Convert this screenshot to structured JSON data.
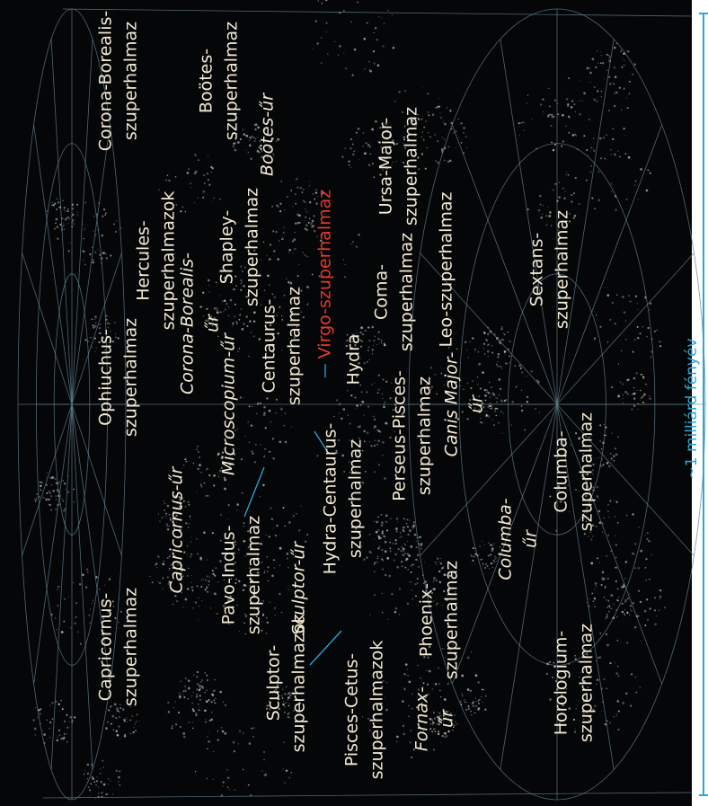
{
  "labels": [
    {
      "lines": [
        "Corona-Borealis-",
        "szuperhalmaz"
      ]
    },
    {
      "lines": [
        "Boötes-",
        "szuperhalmaz"
      ]
    },
    {
      "lines": [
        "Boötes-űr"
      ]
    },
    {
      "lines": [
        "Ursa-Major-",
        "szuperhalmaz"
      ]
    },
    {
      "lines": [
        "Leo-szuperhalmaz"
      ]
    },
    {
      "lines": [
        "Sextans-",
        "szuperhalmaz"
      ]
    },
    {
      "lines": [
        "Virgo-szuperhalmaz"
      ]
    },
    {
      "lines": [
        "Shapley-",
        "szuperhalmaz"
      ]
    },
    {
      "lines": [
        "Hercules-",
        "szuperhalmazok"
      ]
    },
    {
      "lines": [
        "Corona-Borealis-",
        "űr"
      ]
    },
    {
      "lines": [
        "Centaurus-",
        "szuperhalmaz"
      ]
    },
    {
      "lines": [
        "Coma-",
        "szuperhalmaz"
      ]
    },
    {
      "lines": [
        "Hydra"
      ]
    },
    {
      "lines": [
        "Ophiuchus-",
        "szuperhalmaz"
      ]
    },
    {
      "lines": [
        "Microscopium-űr"
      ]
    },
    {
      "lines": [
        "Perseus-Pisces-",
        "szuperhalmaz"
      ]
    },
    {
      "lines": [
        "Canis Major-",
        "űr"
      ]
    },
    {
      "lines": [
        "Hydra-Centaurus-",
        "szuperhalmaz"
      ]
    },
    {
      "lines": [
        "Capricornus-űr"
      ]
    },
    {
      "lines": [
        "Pavo-Indus-",
        "szuperhalmaz"
      ]
    },
    {
      "lines": [
        "Sculptor-űr"
      ]
    },
    {
      "lines": [
        "Columba-",
        "szuperhalmaz"
      ]
    },
    {
      "lines": [
        "Columba-",
        "űr"
      ]
    },
    {
      "lines": [
        "Phoenix-",
        "szuperhalmaz"
      ]
    },
    {
      "lines": [
        "Capricornus-",
        "szuperhalmaz"
      ]
    },
    {
      "lines": [
        "Sculptor-",
        "szuperhalmazok"
      ]
    },
    {
      "lines": [
        "Pisces-Cetus-",
        "szuperhalmazok"
      ]
    },
    {
      "lines": [
        "Fornax-",
        "űr"
      ]
    },
    {
      "lines": [
        "Horologium-",
        "szuperhalmaz"
      ]
    }
  ],
  "scale": "~1 milliárd fényév"
}
